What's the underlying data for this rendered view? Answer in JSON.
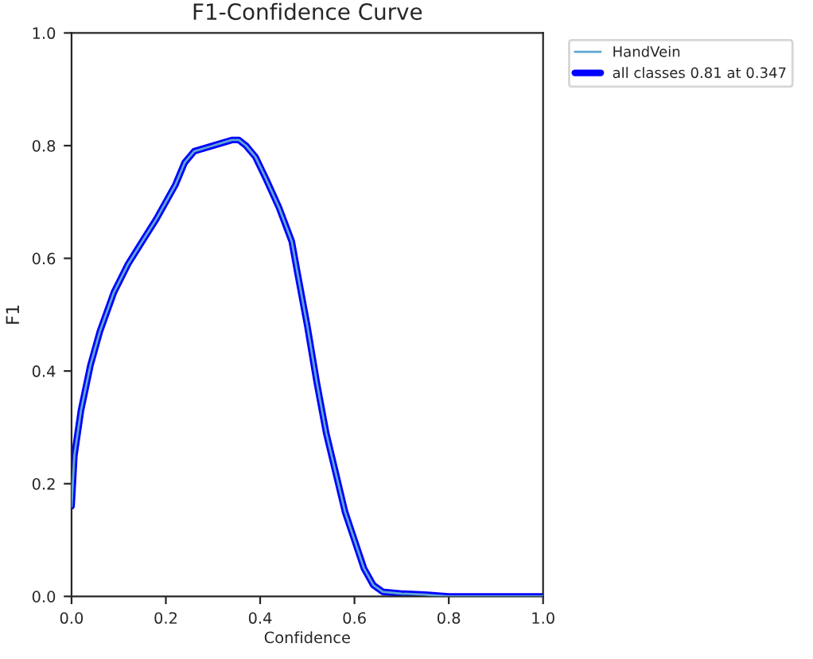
{
  "chart_data": {
    "type": "line",
    "title": "F1-Confidence Curve",
    "xlabel": "Confidence",
    "ylabel": "F1",
    "x": [
      0.0,
      0.006,
      0.02,
      0.04,
      0.06,
      0.09,
      0.12,
      0.15,
      0.18,
      0.2,
      0.22,
      0.24,
      0.26,
      0.28,
      0.3,
      0.32,
      0.34,
      0.355,
      0.37,
      0.39,
      0.413,
      0.44,
      0.467,
      0.48,
      0.5,
      0.52,
      0.54,
      0.56,
      0.58,
      0.6,
      0.62,
      0.64,
      0.66,
      0.7,
      0.75,
      0.8,
      0.9,
      1.0
    ],
    "series": [
      {
        "name": "HandVein",
        "color": "#5fa8d3",
        "values": [
          0.16,
          0.25,
          0.33,
          0.41,
          0.47,
          0.54,
          0.59,
          0.63,
          0.67,
          0.7,
          0.73,
          0.77,
          0.79,
          0.795,
          0.8,
          0.805,
          0.81,
          0.81,
          0.8,
          0.78,
          0.74,
          0.69,
          0.63,
          0.57,
          0.48,
          0.38,
          0.29,
          0.22,
          0.15,
          0.1,
          0.05,
          0.02,
          0.008,
          0.005,
          0.003,
          0.0,
          0.0,
          0.0
        ]
      },
      {
        "name": "all classes 0.81 at 0.347",
        "color": "#0000ff",
        "values": [
          0.16,
          0.25,
          0.33,
          0.41,
          0.47,
          0.54,
          0.59,
          0.63,
          0.67,
          0.7,
          0.73,
          0.77,
          0.79,
          0.795,
          0.8,
          0.805,
          0.81,
          0.81,
          0.8,
          0.78,
          0.74,
          0.69,
          0.63,
          0.57,
          0.48,
          0.38,
          0.29,
          0.22,
          0.15,
          0.1,
          0.05,
          0.02,
          0.008,
          0.005,
          0.003,
          0.0,
          0.0,
          0.0
        ]
      }
    ],
    "xlim": [
      0.0,
      1.0
    ],
    "ylim": [
      0.0,
      1.0
    ],
    "xticks": [
      {
        "value": 0.0,
        "label": "0.0"
      },
      0.2,
      0.4,
      0.6,
      0.8,
      {
        "value": 1.0,
        "label": "1.0"
      }
    ],
    "yticks": [
      {
        "value": 0.0,
        "label": "0.0"
      },
      0.2,
      0.4,
      0.6,
      0.8,
      {
        "value": 1.0,
        "label": "1.0"
      }
    ],
    "legend": "top right",
    "grid": false,
    "line_style": "solid",
    "marker": "none"
  }
}
